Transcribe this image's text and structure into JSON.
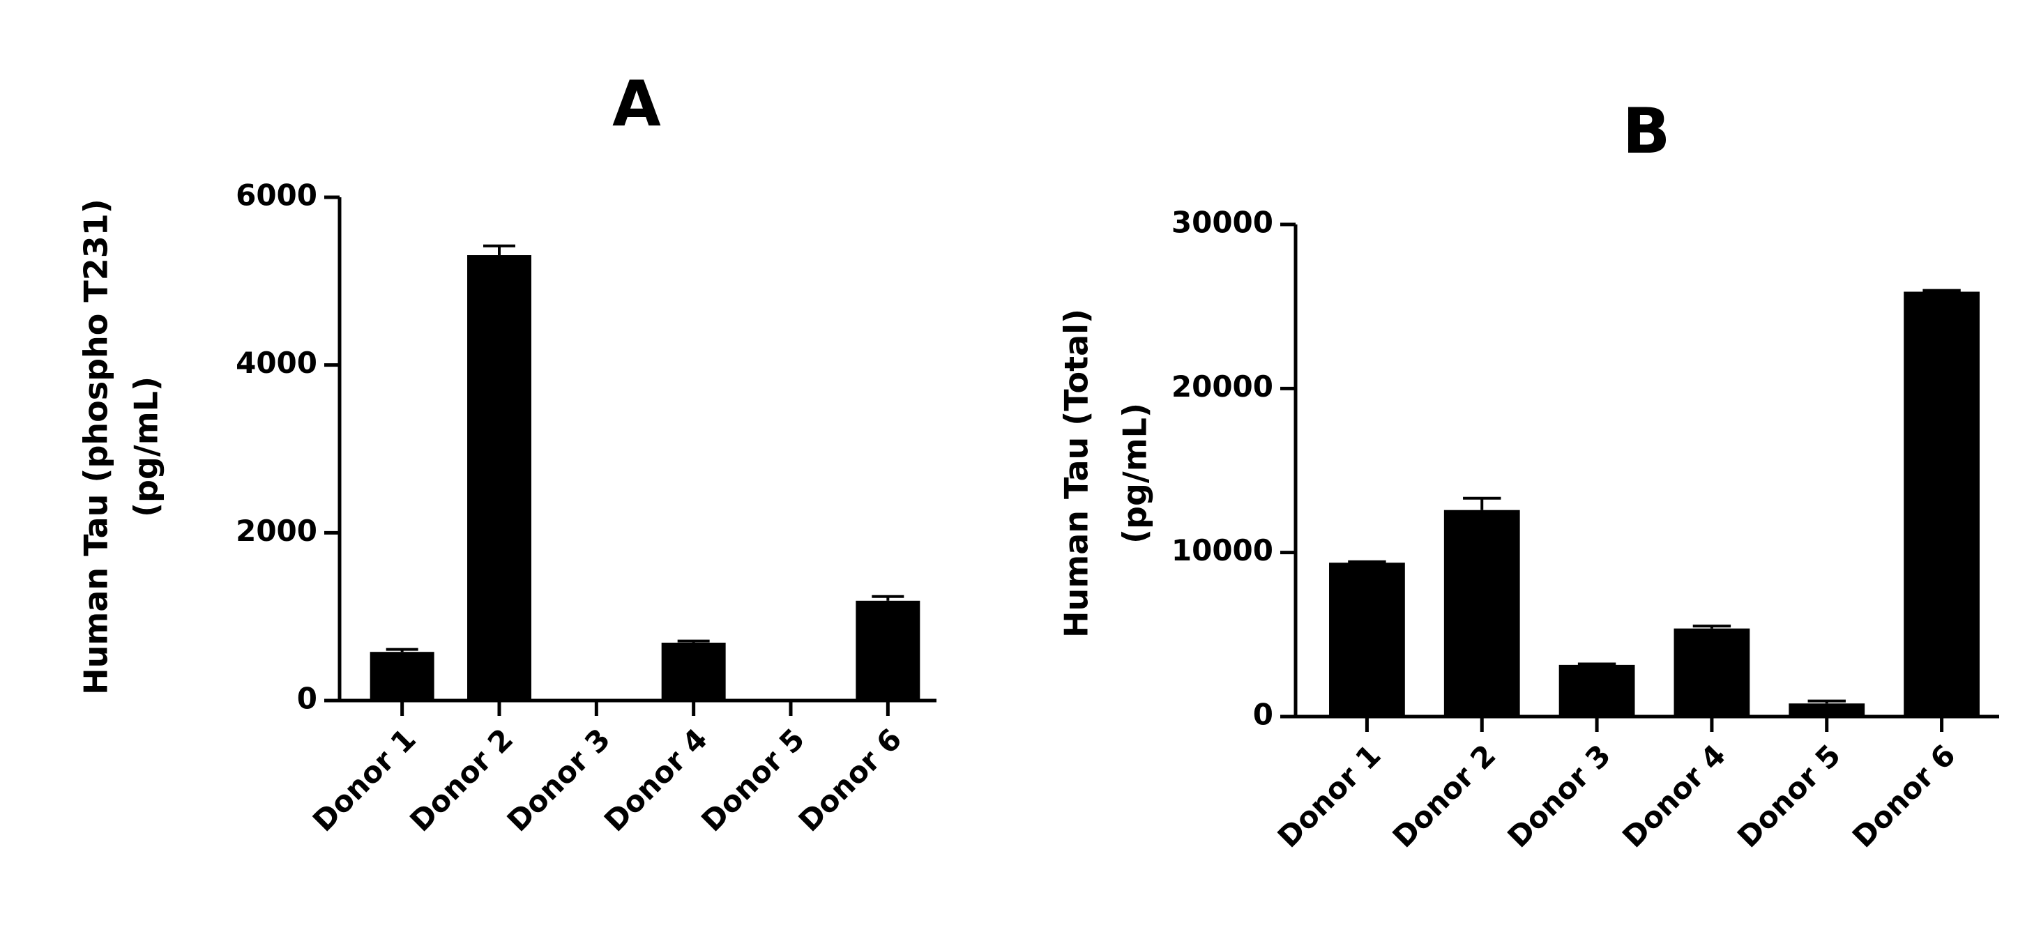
{
  "chart_data": [
    {
      "type": "bar",
      "title": "A",
      "ylabel": [
        "Human Tau (phospho T231)",
        "(pg/mL)"
      ],
      "categories": [
        "Donor 1",
        "Donor 2",
        "Donor 3",
        "Donor 4",
        "Donor 5",
        "Donor 6"
      ],
      "values": [
        580,
        5310,
        0,
        690,
        0,
        1190
      ],
      "errors": [
        30,
        110,
        0,
        20,
        0,
        50
      ],
      "color": "#000000",
      "ylim": [
        0,
        6000
      ],
      "yticks": [
        0,
        2000,
        4000,
        6000
      ]
    },
    {
      "type": "bar",
      "title": "B",
      "ylabel": [
        "Human Tau (Total)",
        "(pg/mL)"
      ],
      "categories": [
        "Donor 1",
        "Donor 2",
        "Donor 3",
        "Donor 4",
        "Donor 5",
        "Donor 6"
      ],
      "values": [
        9380,
        12590,
        3150,
        5370,
        800,
        25900
      ],
      "errors": [
        60,
        720,
        60,
        150,
        150,
        80
      ],
      "color": "#000000",
      "ylim": [
        0,
        30000
      ],
      "yticks": [
        0,
        10000,
        20000,
        30000
      ]
    }
  ]
}
